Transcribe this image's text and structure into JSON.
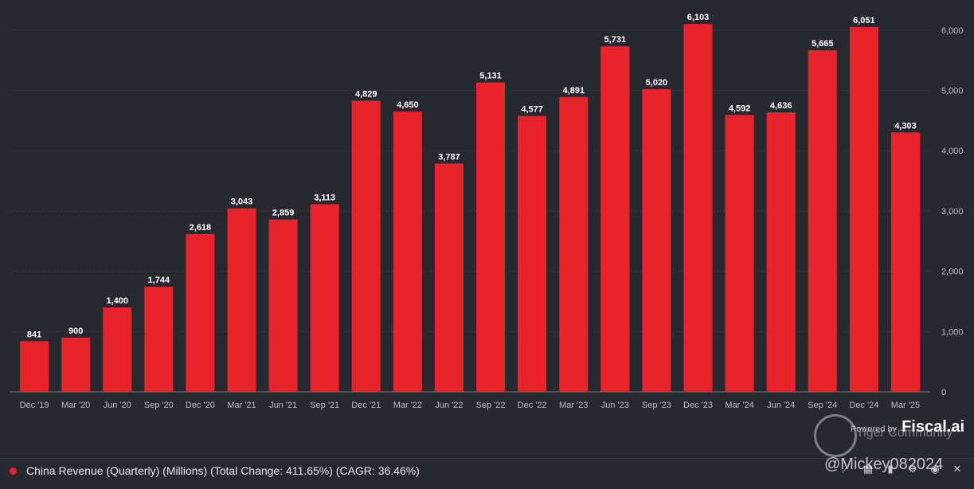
{
  "chart_data": {
    "type": "bar",
    "categories": [
      "Dec '19",
      "Mar '20",
      "Jun '20",
      "Sep '20",
      "Dec '20",
      "Mar '21",
      "Jun '21",
      "Sep '21",
      "Dec '21",
      "Mar '22",
      "Jun '22",
      "Sep '22",
      "Dec '22",
      "Mar '23",
      "Jun '23",
      "Sep '23",
      "Dec '23",
      "Mar '24",
      "Jun '24",
      "Sep '24",
      "Dec '24",
      "Mar '25"
    ],
    "values": [
      841,
      900,
      1400,
      1744,
      2618,
      3043,
      2859,
      3113,
      4829,
      4650,
      3787,
      5131,
      4577,
      4891,
      5731,
      5020,
      6103,
      4592,
      4636,
      5665,
      6051,
      4303
    ],
    "value_labels": [
      "841",
      "900",
      "1,400",
      "1,744",
      "2,618",
      "3,043",
      "2,859",
      "3,113",
      "4,829",
      "4,650",
      "3,787",
      "5,131",
      "4,577",
      "4,891",
      "5,731",
      "5,020",
      "6,103",
      "4,592",
      "4,636",
      "5,665",
      "6,051",
      "4,303"
    ],
    "ylim": [
      0,
      6500
    ],
    "yticks": [
      0,
      1000,
      2000,
      3000,
      4000,
      5000,
      6000
    ],
    "ytick_labels": [
      "0",
      "1,000",
      "2,000",
      "3,000",
      "4,000",
      "5,000",
      "6,000"
    ],
    "y_axis_side": "right",
    "grid": true,
    "bar_color": "#e8232a",
    "legend_placement": "bottom-left"
  },
  "legend": {
    "label": "China Revenue (Quarterly) (Millions) (Total Change: 411.65%) (CAGR: 36.46%)",
    "color": "#e8232a"
  },
  "brand": {
    "prefix": "Powered by",
    "name": "Fiscal.ai"
  },
  "watermark": {
    "text": "Tiger Community",
    "user": "@Mickey082024"
  },
  "tools": [
    "trend-icon",
    "grid-icon",
    "bar-chart-icon",
    "gear-icon",
    "eye-icon",
    "close-icon"
  ]
}
